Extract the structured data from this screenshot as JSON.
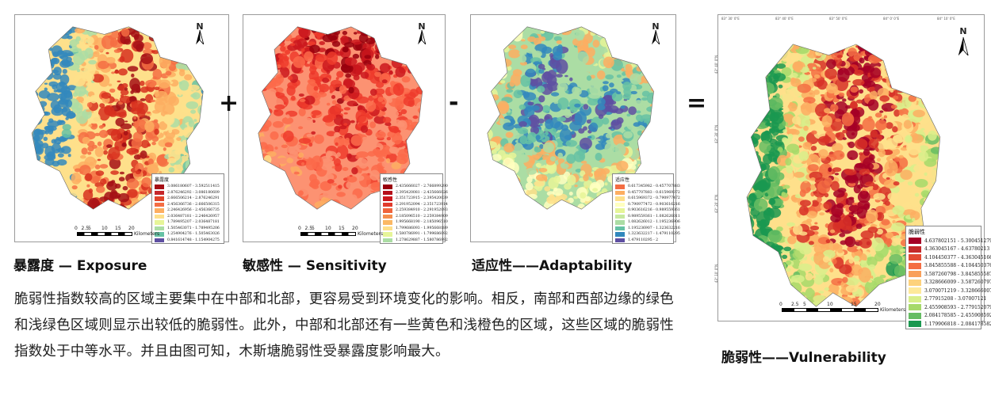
{
  "operators": {
    "plus": "+",
    "minus": "-",
    "equals": "="
  },
  "scale_bar": {
    "ticks": [
      "0",
      "2.5",
      "5",
      "10",
      "15",
      "20"
    ],
    "unit": "Kilometers"
  },
  "north_label": "N",
  "panels": [
    {
      "id": "exposure",
      "caption": "暴露度 — Exposure",
      "legend_title": "暴露度",
      "map_colors": [
        "#a50f15",
        "#d7301f",
        "#f46d43",
        "#fdae61",
        "#fee08b",
        "#abdda4",
        "#66c2a5",
        "#3288bd"
      ],
      "legend": [
        {
          "label": "3.086180607 - 3.592511415",
          "color": "#a50f15"
        },
        {
          "label": "2.876246292 - 3.086180609",
          "color": "#c6272b"
        },
        {
          "label": "2.666506214 - 2.876246291",
          "color": "#e0452b"
        },
        {
          "label": "2.456366736 - 2.666506315",
          "color": "#f46d43"
        },
        {
          "label": "2.246426956 - 2.456366735",
          "color": "#fdae61"
        },
        {
          "label": "2.036487181 - 2.246426957",
          "color": "#fee08b"
        },
        {
          "label": "1.789495207 - 2.036487181",
          "color": "#e6f598"
        },
        {
          "label": "1.505463071 - 1.789495206",
          "color": "#abdda4"
        },
        {
          "label": "1.254904276 - 1.505463026",
          "color": "#66c2a5"
        },
        {
          "label": "0.841614748 - 1.154904275",
          "color": "#5e4fa2"
        }
      ]
    },
    {
      "id": "sensitivity",
      "caption": "敏感性 — Sensitivity",
      "legend_title": "敏感性",
      "map_colors": [
        "#99000d",
        "#cb181d",
        "#ef3b2c",
        "#fb6a4a",
        "#fc9272",
        "#fdae61",
        "#fee08b",
        "#ffffbf"
      ],
      "legend": [
        {
          "label": "2.435666027 - 2.766899290",
          "color": "#99000d"
        },
        {
          "label": "2.395420081 - 2.435666026",
          "color": "#b50f1a"
        },
        {
          "label": "2.351723915 - 2.395420039",
          "color": "#cb181d"
        },
        {
          "label": "2.291952094 - 2.351723914",
          "color": "#e03b2c"
        },
        {
          "label": "2.259384910 - 2.291952093",
          "color": "#f0643c"
        },
        {
          "label": "2.185096510 - 2.259384909",
          "color": "#f58f4f"
        },
        {
          "label": "1.995668190 - 2.185096510",
          "color": "#fbb864"
        },
        {
          "label": "1.799686093 - 1.995668189",
          "color": "#fee08b"
        },
        {
          "label": "1.580786991 - 1.799686092",
          "color": "#e6f598"
        },
        {
          "label": "1.278629887 - 1.580786992",
          "color": "#abdda4"
        }
      ]
    },
    {
      "id": "adaptability",
      "caption": "适应性——Adaptability",
      "legend_title": "适应性",
      "map_colors": [
        "#fee08b",
        "#ffffbf",
        "#e6f598",
        "#fdae61",
        "#abdda4",
        "#66c2a5",
        "#3288bd",
        "#5e4fa2"
      ],
      "legend": [
        {
          "label": "0.617345982 - 0.457707883",
          "color": "#f46d43"
        },
        {
          "label": "0.457707883 - 0.615969372",
          "color": "#fdae61"
        },
        {
          "label": "0.615969372 - 0.790977472",
          "color": "#fee08b"
        },
        {
          "label": "0.790977472 - 0.903616216",
          "color": "#ffffbf"
        },
        {
          "label": "0.903616216 - 0.989559361",
          "color": "#e6f598"
        },
        {
          "label": "0.989559361 - 1.082626011",
          "color": "#c7e9a0"
        },
        {
          "label": "1.082626012 - 1.195236906",
          "color": "#abdda4"
        },
        {
          "label": "1.195236907 - 1.323632216",
          "color": "#66c2a5"
        },
        {
          "label": "1.323632217 - 1.479110295",
          "color": "#3288bd"
        },
        {
          "label": "1.479110295 - 2",
          "color": "#5e4fa2"
        }
      ]
    }
  ],
  "vulnerability": {
    "caption": "脆弱性——Vulnerability",
    "legend_title": "脆弱性",
    "map_colors": [
      "#a50026",
      "#d73027",
      "#f46d43",
      "#fdae61",
      "#fee08b",
      "#d9ef8b",
      "#a6d96a",
      "#66bd63",
      "#1a9850"
    ],
    "legend": [
      {
        "label": "4.637802151 - 5.300451279",
        "color": "#a50026"
      },
      {
        "label": "4.363045167 - 4.63780213",
        "color": "#c42a2b"
      },
      {
        "label": "4.104450377 - 4.363045166",
        "color": "#e34a33"
      },
      {
        "label": "3.845855588 - 4.104450376",
        "color": "#f46d43"
      },
      {
        "label": "3.587260798 - 3.845855587",
        "color": "#f9a05a"
      },
      {
        "label": "3.328666009 - 3.587260797",
        "color": "#fdd27c"
      },
      {
        "label": "3.070071219 - 3.328666007",
        "color": "#fee99a"
      },
      {
        "label": "2.77915208 - 3.07007121",
        "color": "#d9ef8b"
      },
      {
        "label": "2.455908593 - 2.779152079",
        "color": "#a6d96a"
      },
      {
        "label": "2.084178585 - 2.455908592",
        "color": "#66bd63"
      },
      {
        "label": "1.179906818 - 2.084178582",
        "color": "#1a9850"
      }
    ],
    "top_coords": [
      "83° 30' 0\"E",
      "83° 40' 0\"E",
      "83° 50' 0\"E",
      "84° 0' 0\"E",
      "84° 10' 0\"E"
    ],
    "side_coords": [
      "43° 40' 0\"N",
      "43° 30' 0\"N",
      "43° 20' 0\"N",
      "43° 10' 0\"N"
    ]
  },
  "paragraph": "脆弱性指数较高的区域主要集中在中部和北部，更容易受到环境变化的影响。相反，南部和西部边缘的绿色和浅绿色区域则显示出较低的脆弱性。此外，中部和北部还有一些黄色和浅橙色的区域，这些区域的脆弱性指数处于中等水平。并且由图可知，木斯塘脆弱性受暴露度影响最大。"
}
